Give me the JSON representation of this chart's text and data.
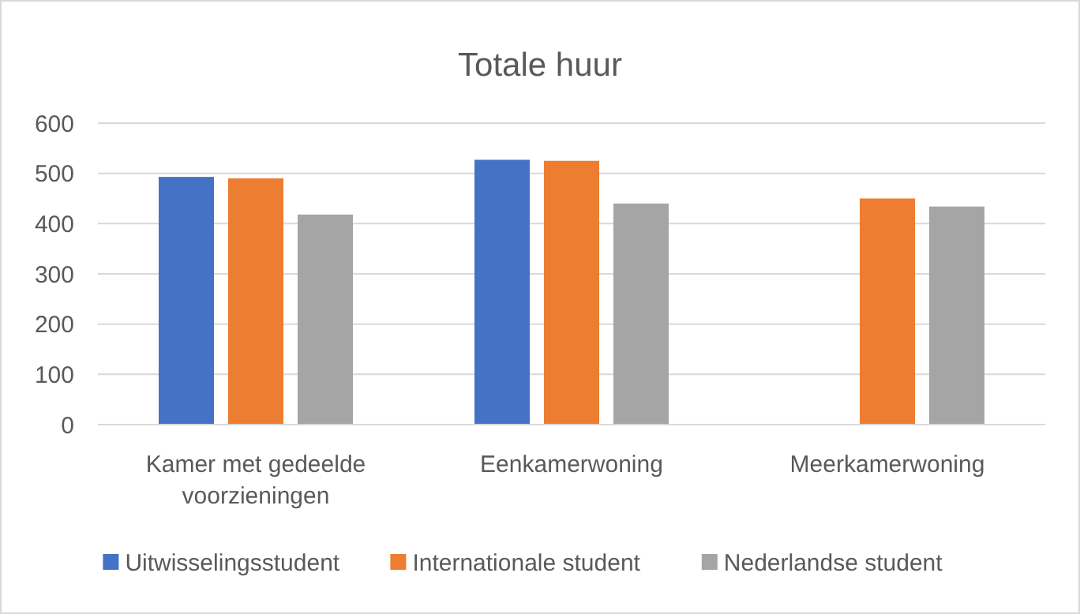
{
  "chart_data": {
    "type": "bar",
    "title": "Totale huur",
    "categories": [
      "Kamer met gedeelde voorzieningen",
      "Eenkamerwoning",
      "Meerkamerwoning"
    ],
    "series": [
      {
        "name": "Uitwisselingsstudent",
        "color": "#4472c4",
        "values": [
          493,
          527,
          null
        ]
      },
      {
        "name": "Internationale student",
        "color": "#ed7d31",
        "values": [
          490,
          525,
          450
        ]
      },
      {
        "name": "Nederlandse student",
        "color": "#a5a5a5",
        "values": [
          418,
          440,
          434
        ]
      }
    ],
    "ylim": [
      0,
      600
    ],
    "yticks": [
      0,
      100,
      200,
      300,
      400,
      500,
      600
    ],
    "grid": "y",
    "legend": "bottom"
  }
}
